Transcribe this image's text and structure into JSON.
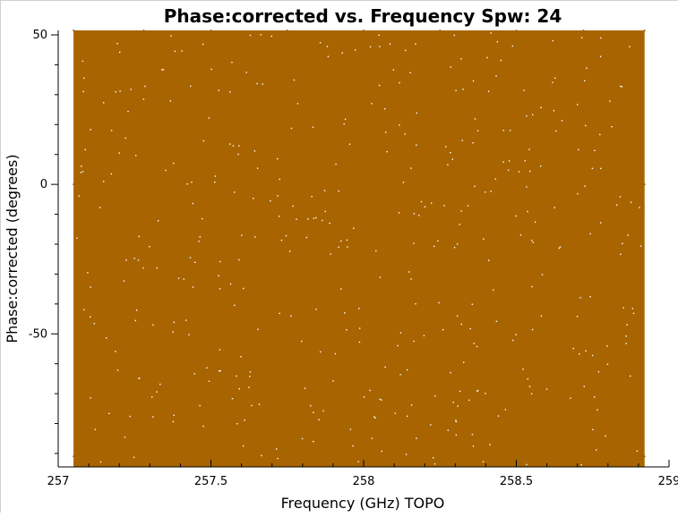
{
  "chart_data": {
    "type": "scatter",
    "title": "Phase:corrected vs. Frequency Spw: 24",
    "xlabel": "Frequency (GHz) TOPO",
    "ylabel": "Phase:corrected (degrees)",
    "xlim": [
      257,
      259
    ],
    "ylim": [
      -90,
      90
    ],
    "xticks": [
      {
        "value": 257,
        "label": "257"
      },
      {
        "value": 257.5,
        "label": "257.5"
      },
      {
        "value": 258,
        "label": "258"
      },
      {
        "value": 258.5,
        "label": "258.5"
      },
      {
        "value": 259,
        "label": "259"
      }
    ],
    "yticks": [
      {
        "value": 50,
        "label": "50"
      },
      {
        "value": 0,
        "label": "0"
      },
      {
        "value": -50,
        "label": "-50"
      }
    ],
    "series_color": "#a86400",
    "data_x_range": [
      257.05,
      258.92
    ],
    "data_y_range": [
      -91,
      91
    ],
    "grid": false,
    "legend": "none",
    "series": [
      {
        "points": [
          [
            257.05,
            -91
          ],
          [
            257.05,
            0
          ],
          [
            257.05,
            91
          ],
          [
            257.28,
            -91
          ],
          [
            257.28,
            0
          ],
          [
            257.28,
            91
          ],
          [
            257.5,
            -91
          ],
          [
            257.5,
            0
          ],
          [
            257.5,
            91
          ],
          [
            257.75,
            -91
          ],
          [
            257.75,
            0
          ],
          [
            257.75,
            91
          ],
          [
            258.0,
            -91
          ],
          [
            258.0,
            0
          ],
          [
            258.0,
            91
          ],
          [
            258.25,
            -91
          ],
          [
            258.25,
            0
          ],
          [
            258.25,
            91
          ],
          [
            258.5,
            -91
          ],
          [
            258.5,
            0
          ],
          [
            258.5,
            91
          ],
          [
            258.72,
            -91
          ],
          [
            258.72,
            0
          ],
          [
            258.72,
            91
          ],
          [
            258.92,
            -91
          ],
          [
            258.92,
            0
          ],
          [
            258.92,
            91
          ]
        ]
      }
    ]
  }
}
